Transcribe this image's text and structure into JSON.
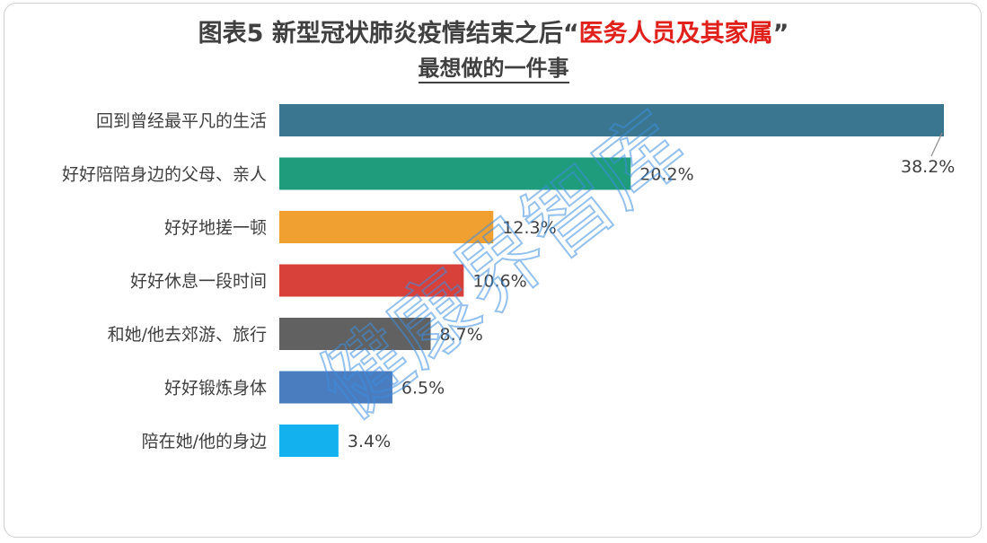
{
  "title": {
    "prefix": "图表5  新型冠状肺炎疫情结束之后“",
    "highlight": "医务人员及其家属",
    "suffix": "”",
    "line2": "最想做的一件事"
  },
  "watermark": "健康界智库",
  "colors": {
    "text": "#404040",
    "highlight": "#e0201b",
    "watermark": "#3d8fe0"
  },
  "chart_data": {
    "type": "bar",
    "orientation": "horizontal",
    "unit": "%",
    "categories": [
      "回到曾经最平凡的生活",
      "好好陪陪身边的父母、亲人",
      "好好地搓一顿",
      "好好休息一段时间",
      "和她/他去郊游、旅行",
      "好好锻炼身体",
      "陪在她/他的身边"
    ],
    "values": [
      38.2,
      20.2,
      12.3,
      10.6,
      8.7,
      6.5,
      3.4
    ],
    "value_labels": [
      "38.2%",
      "20.2%",
      "12.3%",
      "10.6%",
      "8.7%",
      "6.5%",
      "3.4%"
    ],
    "bar_colors": [
      "#3a768f",
      "#1f9c7c",
      "#f0a030",
      "#d8403a",
      "#616161",
      "#4a7cc0",
      "#13b1ee"
    ],
    "xlim": [
      0,
      38.2
    ],
    "grid": false,
    "legend": "none"
  }
}
